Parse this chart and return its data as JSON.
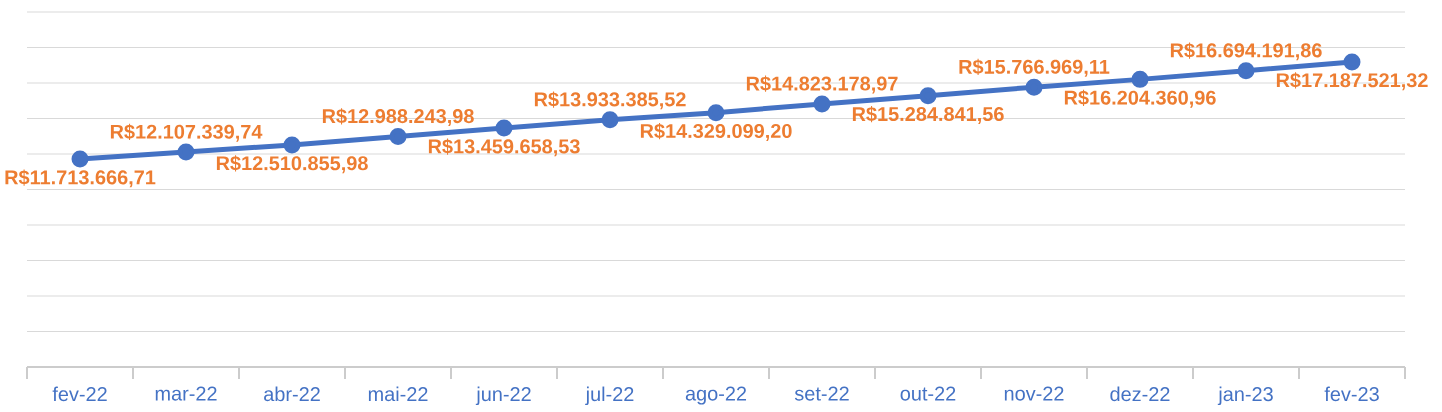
{
  "chart_data": {
    "type": "line",
    "categories": [
      "fev-22",
      "mar-22",
      "abr-22",
      "mai-22",
      "jun-22",
      "jul-22",
      "ago-22",
      "set-22",
      "out-22",
      "nov-22",
      "dez-22",
      "jan-23",
      "fev-23"
    ],
    "values": [
      11713666.71,
      12107339.74,
      12510855.98,
      12988243.98,
      13459658.53,
      13933385.52,
      14329099.2,
      14823178.97,
      15284841.56,
      15766969.11,
      16204360.96,
      16694191.86,
      17187521.32
    ],
    "value_labels": [
      "R$11.713.666,71",
      "R$12.107.339,74",
      "R$12.510.855,98",
      "R$12.988.243,98",
      "R$13.459.658,53",
      "R$13.933.385,52",
      "R$14.329.099,20",
      "R$14.823.178,97",
      "R$15.284.841,56",
      "R$15.766.969,11",
      "R$16.204.360,96",
      "R$16.694.191,86",
      "R$17.187.521,32"
    ],
    "color": "#4472c4",
    "ylim": [
      0,
      20000000
    ],
    "yticks": [
      {
        "value": 0,
        "label": null
      },
      {
        "value": 2000000,
        "label": null
      },
      {
        "value": 4000000,
        "label": null
      },
      {
        "value": 6000000,
        "label": null
      },
      {
        "value": 8000000,
        "label": null
      },
      {
        "value": 10000000,
        "label": null
      },
      {
        "value": 12000000,
        "label": null
      },
      {
        "value": 14000000,
        "label": null
      },
      {
        "value": 16000000,
        "label": null
      },
      {
        "value": 18000000,
        "label": null
      },
      {
        "value": 20000000,
        "label": null
      }
    ],
    "grid": "y",
    "tick_labels": "x",
    "marker": "circle"
  }
}
